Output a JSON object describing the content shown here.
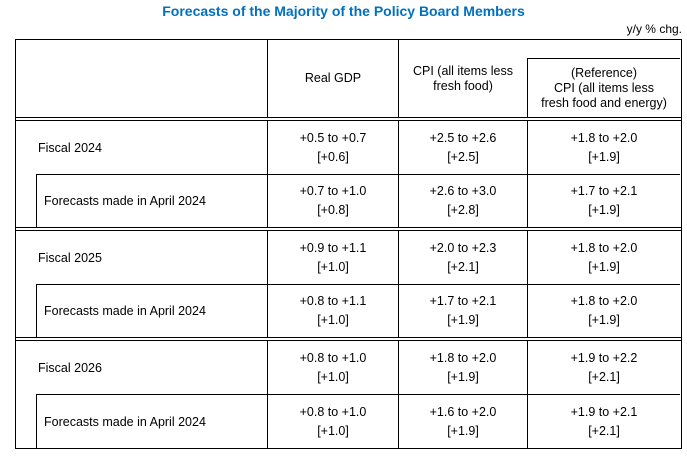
{
  "title": "Forecasts of the Majority of the Policy Board Members",
  "unit_note": "y/y % chg.",
  "title_color": "#0070C0",
  "columns": {
    "gdp": "Real GDP",
    "cpi": [
      "CPI (all items less",
      "fresh food)"
    ],
    "reference": [
      "(Reference)",
      "CPI (all items less",
      "fresh food and energy)"
    ]
  },
  "blocks": [
    {
      "main": {
        "label": "Fiscal 2024",
        "gdp_range": "+0.5 to +0.7",
        "gdp_median": "[+0.6]",
        "cpi_range": "+2.5 to +2.6",
        "cpi_median": "[+2.5]",
        "ref_range": "+1.8 to +2.0",
        "ref_median": "[+1.9]"
      },
      "april": {
        "label": "Forecasts made in April 2024",
        "gdp_range": "+0.7 to +1.0",
        "gdp_median": "[+0.8]",
        "cpi_range": "+2.6 to +3.0",
        "cpi_median": "[+2.8]",
        "ref_range": "+1.7 to +2.1",
        "ref_median": "[+1.9]"
      }
    },
    {
      "main": {
        "label": "Fiscal 2025",
        "gdp_range": "+0.9 to +1.1",
        "gdp_median": "[+1.0]",
        "cpi_range": "+2.0 to +2.3",
        "cpi_median": "[+2.1]",
        "ref_range": "+1.8 to +2.0",
        "ref_median": "[+1.9]"
      },
      "april": {
        "label": "Forecasts made in April 2024",
        "gdp_range": "+0.8 to +1.1",
        "gdp_median": "[+1.0]",
        "cpi_range": "+1.7 to +2.1",
        "cpi_median": "[+1.9]",
        "ref_range": "+1.8 to +2.0",
        "ref_median": "[+1.9]"
      }
    },
    {
      "main": {
        "label": "Fiscal 2026",
        "gdp_range": "+0.8 to +1.0",
        "gdp_median": "[+1.0]",
        "cpi_range": "+1.8 to +2.0",
        "cpi_median": "[+1.9]",
        "ref_range": "+1.9 to +2.2",
        "ref_median": "[+2.1]"
      },
      "april": {
        "label": "Forecasts made in April 2024",
        "gdp_range": "+0.8 to +1.0",
        "gdp_median": "[+1.0]",
        "cpi_range": "+1.6 to +2.0",
        "cpi_median": "[+1.9]",
        "ref_range": "+1.9 to +2.1",
        "ref_median": "[+2.1]"
      }
    }
  ]
}
